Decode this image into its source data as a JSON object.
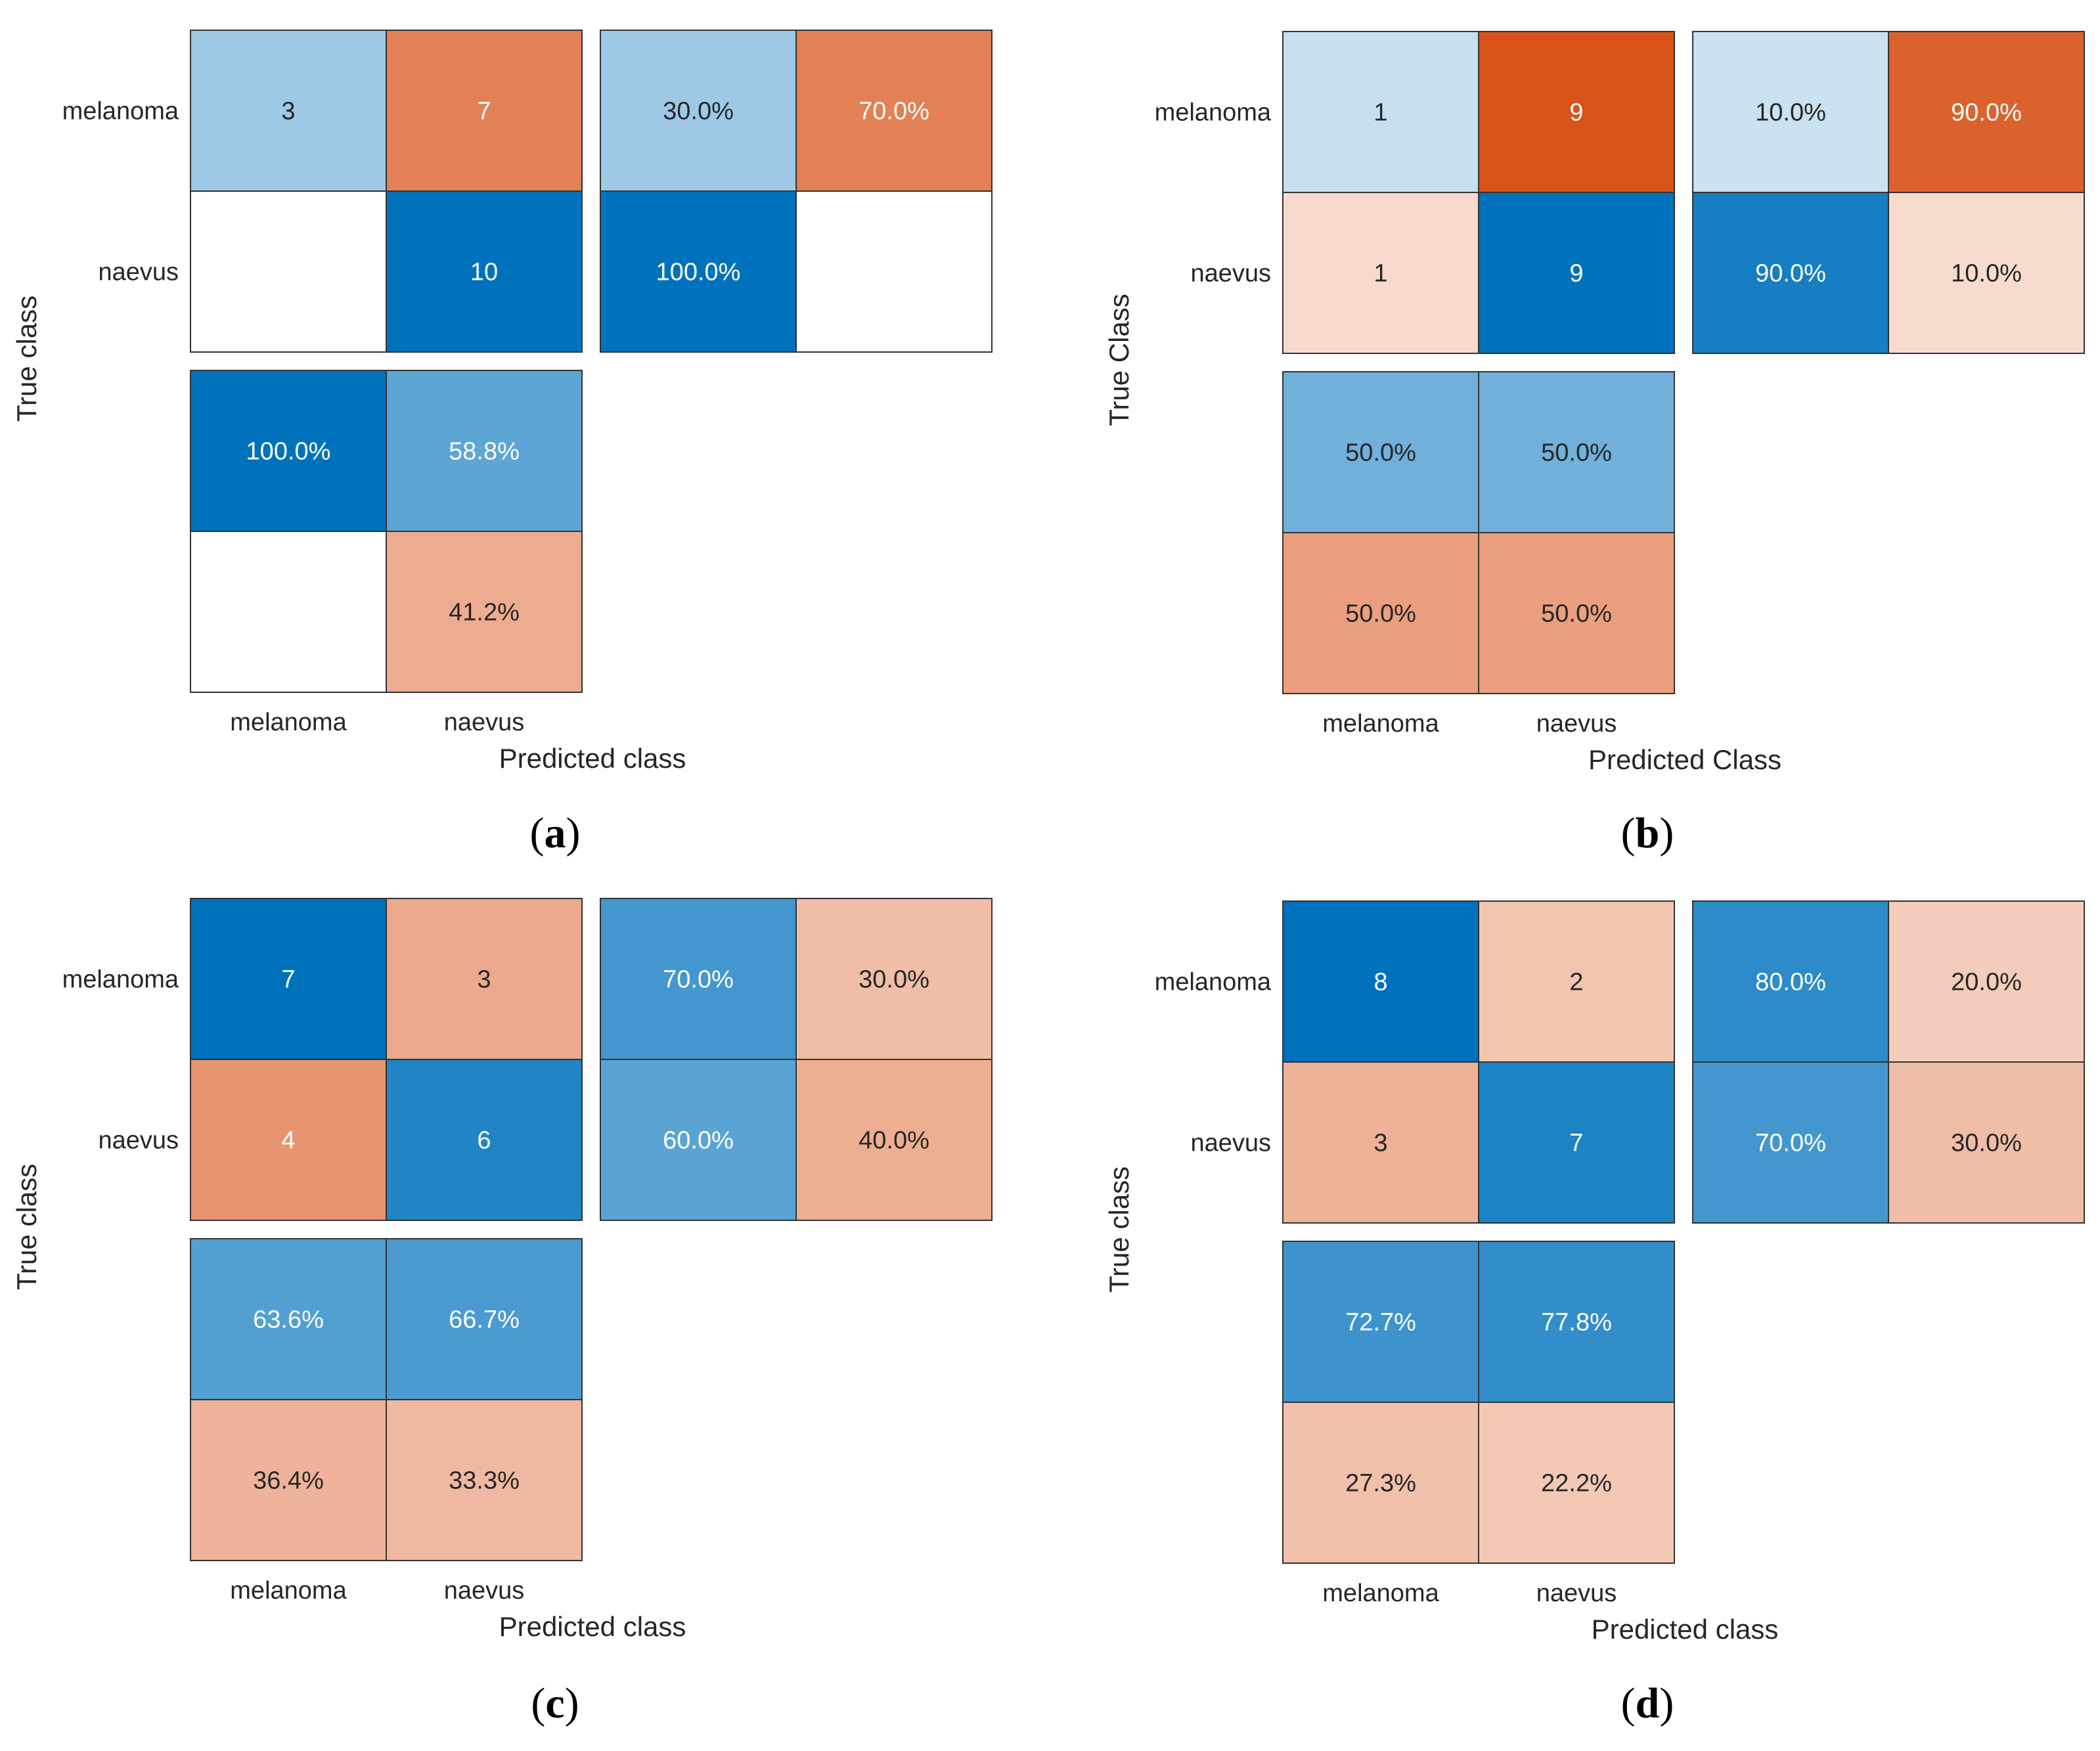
{
  "colors": {
    "blue_max": "#0072bd",
    "orange_max": "#d95319",
    "empty": "#ffffff",
    "border": "#333333",
    "text_dark": "#262626",
    "text_light": "#ffffff"
  },
  "chart_data": [
    {
      "type": "heatmap",
      "id": "a",
      "caption": "a",
      "ylabel": "True class",
      "xlabel": "Predicted class",
      "class_labels": [
        "melanoma",
        "naevus"
      ],
      "counts": [
        [
          "3",
          "7"
        ],
        [
          "",
          "10"
        ]
      ],
      "count_values": [
        [
          3,
          7
        ],
        [
          0,
          10
        ]
      ],
      "row_summary": [
        [
          "30.0%",
          "70.0%"
        ],
        [
          "100.0%",
          ""
        ]
      ],
      "row_summary_values": [
        [
          30.0,
          70.0
        ],
        [
          100.0,
          0
        ]
      ],
      "col_summary": [
        [
          "100.0%",
          "58.8%"
        ],
        [
          "",
          "41.2%"
        ]
      ],
      "col_summary_values": [
        [
          100.0,
          58.8
        ],
        [
          0,
          41.2
        ]
      ]
    },
    {
      "type": "heatmap",
      "id": "b",
      "caption": "b",
      "ylabel": "True Class",
      "xlabel": "Predicted Class",
      "class_labels": [
        "melanoma",
        "naevus"
      ],
      "counts": [
        [
          "1",
          "9"
        ],
        [
          "1",
          "9"
        ]
      ],
      "count_values": [
        [
          1,
          9
        ],
        [
          1,
          9
        ]
      ],
      "row_summary": [
        [
          "10.0%",
          "90.0%"
        ],
        [
          "90.0%",
          "10.0%"
        ]
      ],
      "row_summary_values": [
        [
          10.0,
          90.0
        ],
        [
          90.0,
          10.0
        ]
      ],
      "col_summary": [
        [
          "50.0%",
          "50.0%"
        ],
        [
          "50.0%",
          "50.0%"
        ]
      ],
      "col_summary_values": [
        [
          50.0,
          50.0
        ],
        [
          50.0,
          50.0
        ]
      ]
    },
    {
      "type": "heatmap",
      "id": "c",
      "caption": "c",
      "ylabel": "True class",
      "xlabel": "Predicted class",
      "class_labels": [
        "melanoma",
        "naevus"
      ],
      "counts": [
        [
          "7",
          "3"
        ],
        [
          "4",
          "6"
        ]
      ],
      "count_values": [
        [
          7,
          3
        ],
        [
          4,
          6
        ]
      ],
      "row_summary": [
        [
          "70.0%",
          "30.0%"
        ],
        [
          "60.0%",
          "40.0%"
        ]
      ],
      "row_summary_values": [
        [
          70.0,
          30.0
        ],
        [
          60.0,
          40.0
        ]
      ],
      "col_summary": [
        [
          "63.6%",
          "66.7%"
        ],
        [
          "36.4%",
          "33.3%"
        ]
      ],
      "col_summary_values": [
        [
          63.6,
          66.7
        ],
        [
          36.4,
          33.3
        ]
      ]
    },
    {
      "type": "heatmap",
      "id": "d",
      "caption": "d",
      "ylabel": "True class",
      "xlabel": "Predicted class",
      "class_labels": [
        "melanoma",
        "naevus"
      ],
      "counts": [
        [
          "8",
          "2"
        ],
        [
          "3",
          "7"
        ]
      ],
      "count_values": [
        [
          8,
          2
        ],
        [
          3,
          7
        ]
      ],
      "row_summary": [
        [
          "80.0%",
          "20.0%"
        ],
        [
          "70.0%",
          "30.0%"
        ]
      ],
      "row_summary_values": [
        [
          80.0,
          20.0
        ],
        [
          70.0,
          30.0
        ]
      ],
      "col_summary": [
        [
          "72.7%",
          "77.8%"
        ],
        [
          "27.3%",
          "22.2%"
        ]
      ],
      "col_summary_values": [
        [
          72.7,
          77.8
        ],
        [
          27.3,
          22.2
        ]
      ]
    }
  ]
}
